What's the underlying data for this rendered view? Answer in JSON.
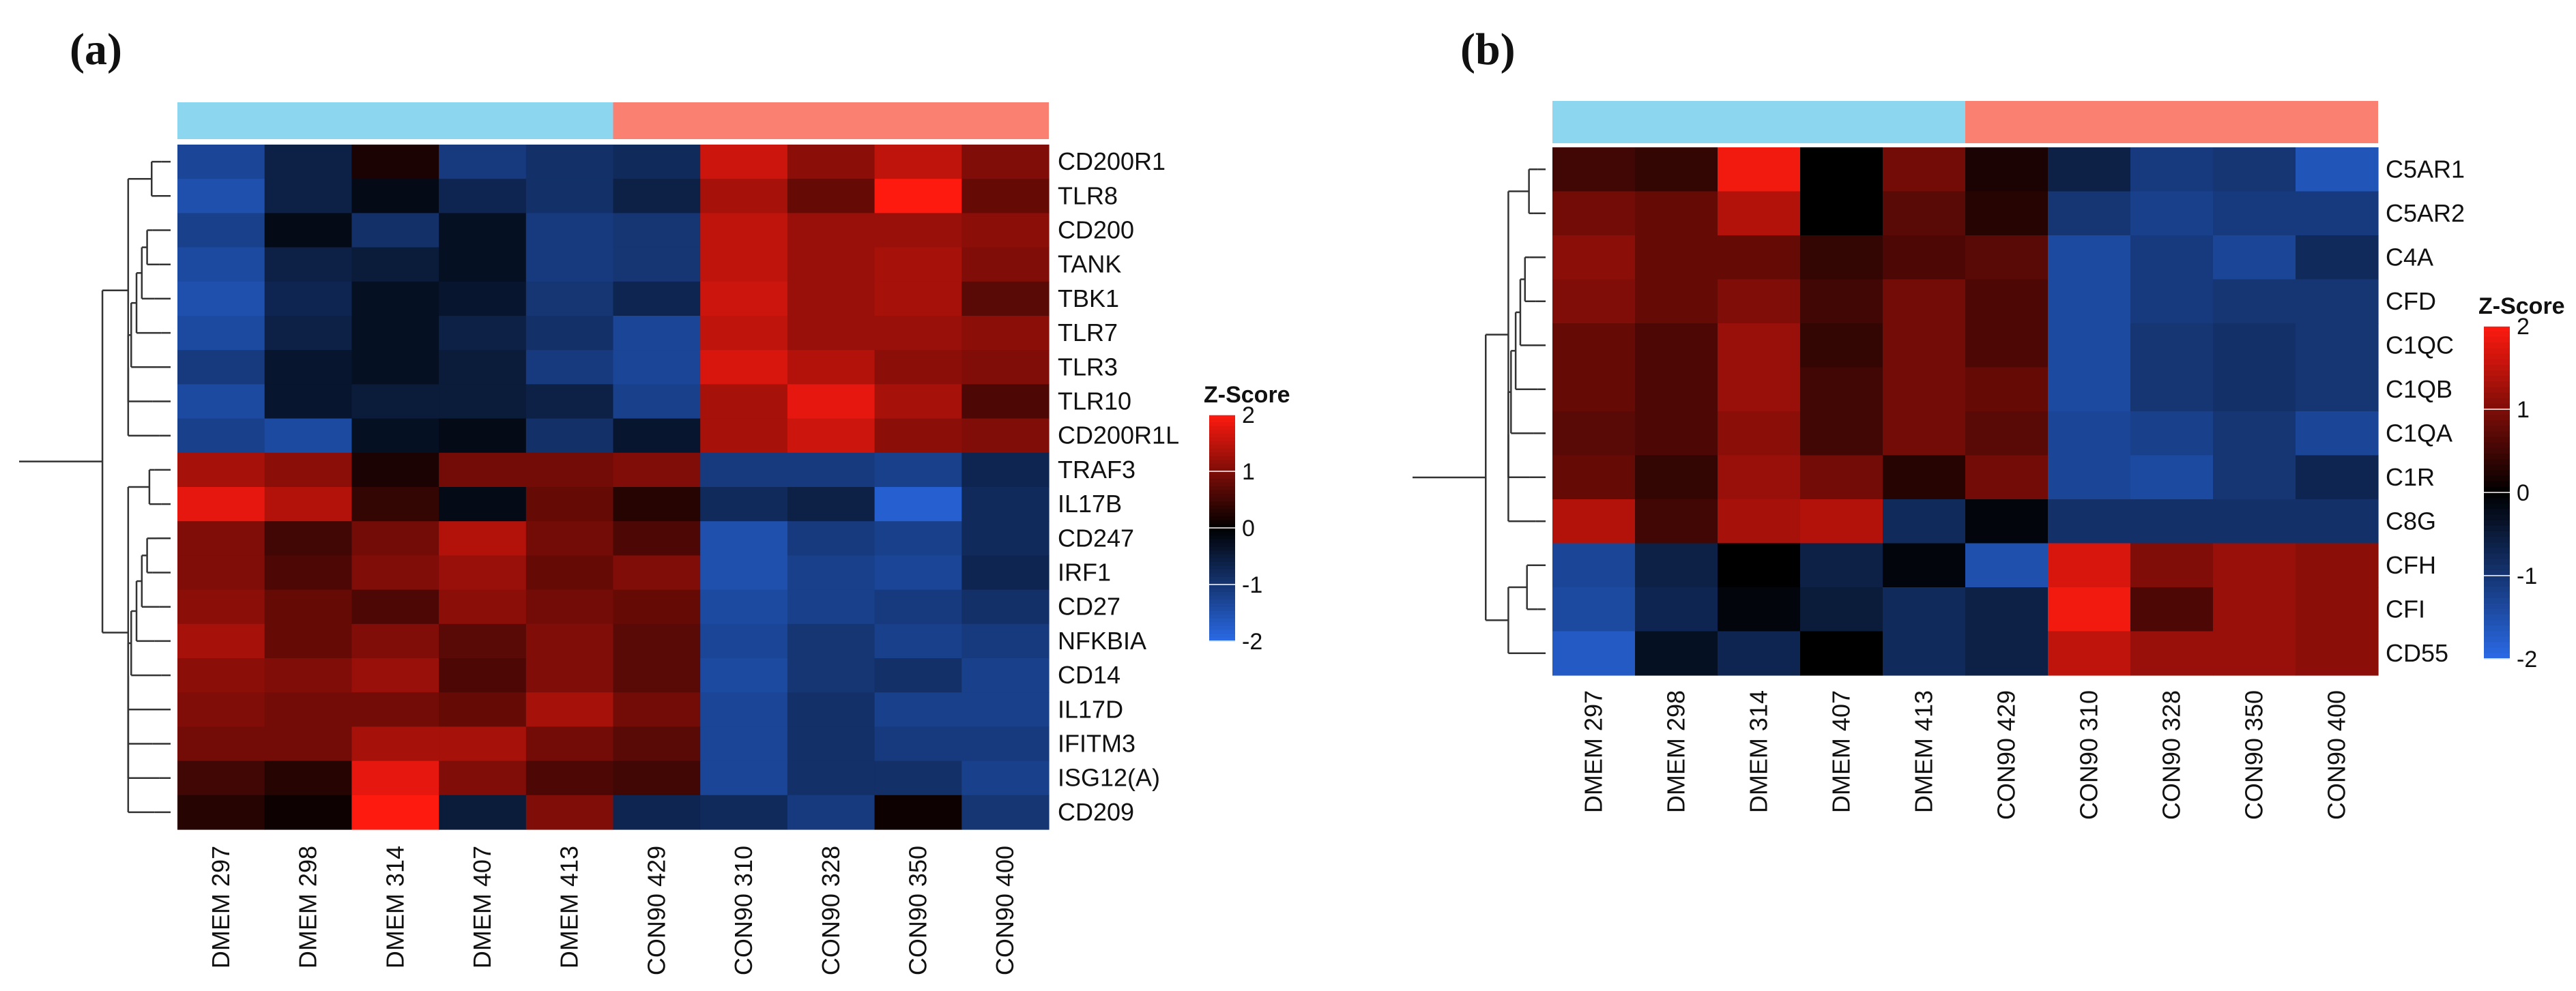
{
  "panels": [
    {
      "panel_label": "(a)",
      "chart_data": {
        "type": "heatmap",
        "title": "",
        "value_label": "Z-Score",
        "value_range": [
          -2,
          2
        ],
        "value_ticks": [
          2,
          1,
          0,
          -1,
          -2
        ],
        "colormap": {
          "low": "#2a6ae6",
          "mid": "#000000",
          "high": "#ff1a10"
        },
        "annotation_groups": [
          {
            "name": "DMEM",
            "color": "#8dd6f0",
            "span": 5
          },
          {
            "name": "CON90",
            "color": "#fa8072",
            "span": 5
          }
        ],
        "columns": [
          "DMEM 297",
          "DMEM 298",
          "DMEM 314",
          "DMEM 407",
          "DMEM 413",
          "CON90 429",
          "CON90 310",
          "CON90 328",
          "CON90 350",
          "CON90 400"
        ],
        "rows": [
          "CD200R1",
          "TLR8",
          "CD200",
          "TANK",
          "TBK1",
          "TLR7",
          "TLR3",
          "TLR10",
          "CD200R1L",
          "TRAF3",
          "IL17B",
          "CD247",
          "IRF1",
          "CD27",
          "NFKBIA",
          "CD14",
          "IL17D",
          "IFITM3",
          "ISG12(A)",
          "CD209"
        ],
        "values": [
          [
            -1.3,
            -0.6,
            0.2,
            -1.1,
            -0.9,
            -0.8,
            1.6,
            1.1,
            1.5,
            1.0
          ],
          [
            -1.5,
            -0.6,
            -0.2,
            -0.7,
            -0.9,
            -0.6,
            1.3,
            0.8,
            2.0,
            0.8
          ],
          [
            -1.2,
            -0.2,
            -0.9,
            -0.3,
            -1.1,
            -1.0,
            1.5,
            1.2,
            1.2,
            1.1
          ],
          [
            -1.4,
            -0.6,
            -0.5,
            -0.3,
            -1.1,
            -1.0,
            1.5,
            1.2,
            1.3,
            1.0
          ],
          [
            -1.5,
            -0.7,
            -0.3,
            -0.4,
            -1.0,
            -0.7,
            1.6,
            1.2,
            1.3,
            0.7
          ],
          [
            -1.4,
            -0.6,
            -0.3,
            -0.6,
            -0.9,
            -1.3,
            1.5,
            1.2,
            1.2,
            1.1
          ],
          [
            -1.1,
            -0.4,
            -0.3,
            -0.5,
            -1.1,
            -1.3,
            1.7,
            1.4,
            1.1,
            1.0
          ],
          [
            -1.4,
            -0.4,
            -0.5,
            -0.5,
            -0.6,
            -1.2,
            1.3,
            1.8,
            1.3,
            0.6
          ],
          [
            -1.2,
            -1.4,
            -0.3,
            -0.2,
            -0.9,
            -0.4,
            1.3,
            1.6,
            1.1,
            1.0
          ],
          [
            1.3,
            1.1,
            0.2,
            0.9,
            0.9,
            1.0,
            -1.1,
            -1.1,
            -1.2,
            -0.7
          ],
          [
            1.8,
            1.4,
            0.4,
            -0.2,
            0.8,
            0.3,
            -0.8,
            -0.6,
            -1.8,
            -0.8
          ],
          [
            1.0,
            0.5,
            0.9,
            1.4,
            0.9,
            0.6,
            -1.5,
            -1.1,
            -1.2,
            -0.8
          ],
          [
            1.0,
            0.6,
            1.0,
            1.2,
            0.8,
            1.0,
            -1.5,
            -1.2,
            -1.3,
            -0.7
          ],
          [
            1.1,
            0.8,
            0.6,
            1.1,
            0.9,
            0.8,
            -1.4,
            -1.2,
            -1.1,
            -0.9
          ],
          [
            1.3,
            0.8,
            1.0,
            0.7,
            1.0,
            0.7,
            -1.3,
            -1.0,
            -1.2,
            -1.1
          ],
          [
            1.1,
            1.0,
            1.2,
            0.6,
            1.0,
            0.7,
            -1.4,
            -1.0,
            -0.9,
            -1.2
          ],
          [
            1.0,
            0.9,
            0.9,
            0.8,
            1.3,
            0.9,
            -1.3,
            -0.9,
            -1.2,
            -1.2
          ],
          [
            0.9,
            0.9,
            1.3,
            1.3,
            0.9,
            0.7,
            -1.3,
            -0.9,
            -1.1,
            -1.1
          ],
          [
            0.5,
            0.3,
            1.8,
            1.0,
            0.6,
            0.5,
            -1.3,
            -0.9,
            -0.9,
            -1.2
          ],
          [
            0.3,
            0.1,
            2.0,
            -0.5,
            1.0,
            -0.7,
            -0.8,
            -1.1,
            0.1,
            -1.0
          ]
        ]
      }
    },
    {
      "panel_label": "(b)",
      "chart_data": {
        "type": "heatmap",
        "title": "",
        "value_label": "Z-Score",
        "value_range": [
          -2,
          2
        ],
        "value_ticks": [
          2,
          1,
          0,
          -1,
          -2
        ],
        "colormap": {
          "low": "#2a6ae6",
          "mid": "#000000",
          "high": "#ff1a10"
        },
        "annotation_groups": [
          {
            "name": "DMEM",
            "color": "#8dd6f0",
            "span": 5
          },
          {
            "name": "CON90",
            "color": "#fa8072",
            "span": 5
          }
        ],
        "columns": [
          "DMEM 297",
          "DMEM 298",
          "DMEM 314",
          "DMEM 407",
          "DMEM 413",
          "CON90 429",
          "CON90 310",
          "CON90 328",
          "CON90 350",
          "CON90 400"
        ],
        "rows": [
          "C5AR1",
          "C5AR2",
          "C4A",
          "CFD",
          "C1QC",
          "C1QB",
          "C1QA",
          "C1R",
          "C8G",
          "CFH",
          "CFI",
          "CD55"
        ],
        "values": [
          [
            0.5,
            0.4,
            1.9,
            0.0,
            0.9,
            0.2,
            -0.6,
            -1.1,
            -1.0,
            -1.6
          ],
          [
            0.9,
            0.8,
            1.4,
            0.0,
            0.7,
            0.3,
            -1.0,
            -1.2,
            -1.1,
            -1.1
          ],
          [
            1.1,
            0.8,
            0.8,
            0.4,
            0.6,
            0.7,
            -1.4,
            -1.1,
            -1.3,
            -0.8
          ],
          [
            1.0,
            0.8,
            1.0,
            0.5,
            0.9,
            0.6,
            -1.4,
            -1.1,
            -1.0,
            -1.0
          ],
          [
            0.8,
            0.6,
            1.2,
            0.4,
            0.9,
            0.6,
            -1.4,
            -1.0,
            -0.9,
            -1.0
          ],
          [
            0.8,
            0.6,
            1.2,
            0.5,
            0.9,
            0.8,
            -1.4,
            -1.0,
            -0.9,
            -1.0
          ],
          [
            0.7,
            0.6,
            1.1,
            0.5,
            0.9,
            0.7,
            -1.3,
            -1.2,
            -1.0,
            -1.3
          ],
          [
            0.8,
            0.4,
            1.2,
            0.9,
            0.3,
            0.9,
            -1.3,
            -1.4,
            -1.0,
            -0.7
          ],
          [
            1.4,
            0.5,
            1.3,
            1.4,
            -0.8,
            -0.1,
            -0.9,
            -0.9,
            -0.9,
            -0.9
          ],
          [
            -1.3,
            -0.6,
            0.0,
            -0.6,
            -0.1,
            -1.5,
            1.7,
            1.0,
            1.2,
            1.1
          ],
          [
            -1.4,
            -0.7,
            -0.1,
            -0.5,
            -0.8,
            -0.6,
            1.9,
            0.6,
            1.2,
            1.1
          ],
          [
            -1.7,
            -0.3,
            -0.7,
            0.0,
            -0.8,
            -0.6,
            1.5,
            1.2,
            1.2,
            1.1
          ]
        ]
      }
    }
  ]
}
